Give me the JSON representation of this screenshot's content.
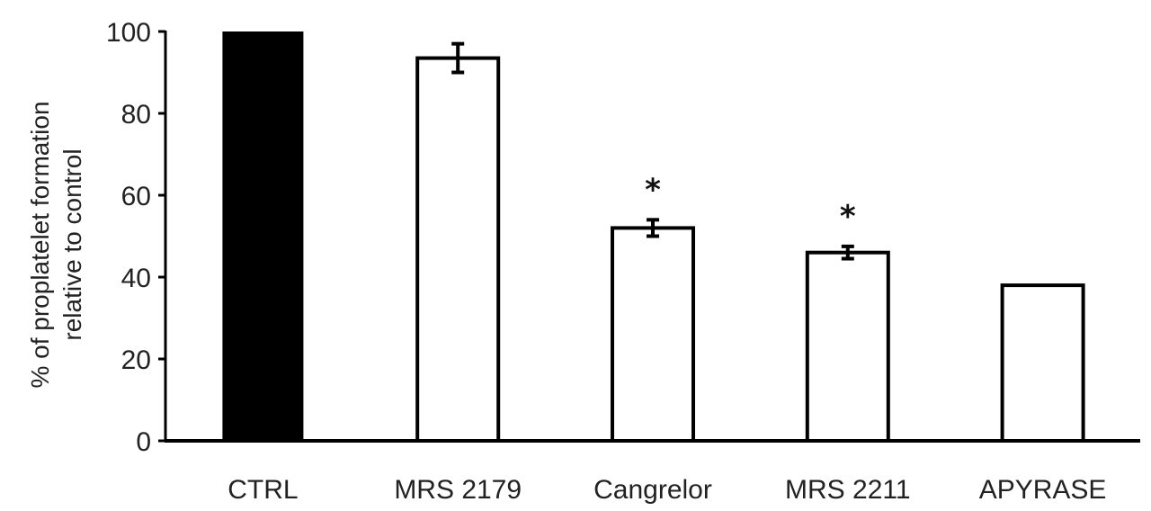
{
  "chart_data": {
    "type": "bar",
    "categories": [
      "CTRL",
      "MRS 2179",
      "Cangrelor",
      "MRS 2211",
      "APYRASE"
    ],
    "values": [
      100,
      93.5,
      52,
      46,
      38
    ],
    "errors": [
      null,
      3.5,
      2,
      1.5,
      null
    ],
    "significance": [
      "",
      "",
      "*",
      "*",
      ""
    ],
    "fills": [
      "#000000",
      "#ffffff",
      "#ffffff",
      "#ffffff",
      "#ffffff"
    ],
    "ylabel_lines": [
      "% of proplatelet formation",
      "relative to control"
    ],
    "ylim": [
      0,
      100
    ],
    "yticks": [
      0,
      20,
      40,
      60,
      80,
      100
    ],
    "grid": false,
    "legend": "none"
  }
}
